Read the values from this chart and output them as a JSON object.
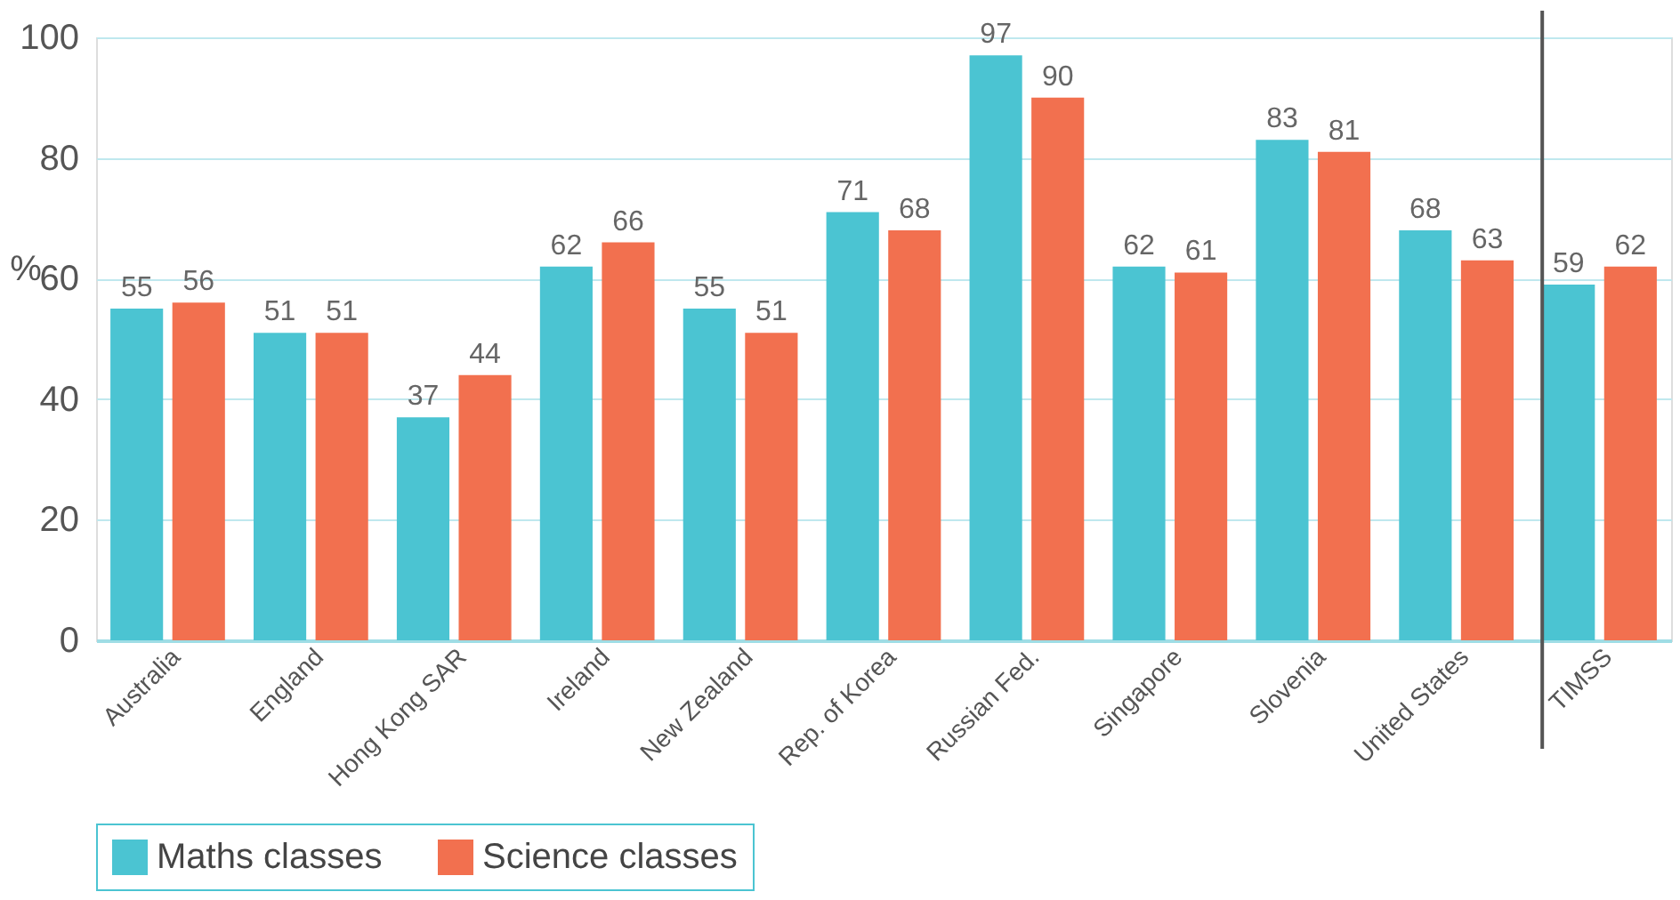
{
  "chart_data": {
    "type": "bar",
    "ylabel": "%",
    "categories": [
      "Australia",
      "England",
      "Hong Kong SAR",
      "Ireland",
      "New Zealand",
      "Rep. of Korea",
      "Russian Fed.",
      "Singapore",
      "Slovenia",
      "United States",
      "TIMSS"
    ],
    "series": [
      {
        "name": "Maths classes",
        "color": "#4bc4d2",
        "values": [
          55,
          51,
          37,
          62,
          55,
          71,
          97,
          62,
          83,
          68,
          59
        ]
      },
      {
        "name": "Science classes",
        "color": "#f2704f",
        "values": [
          56,
          51,
          44,
          66,
          51,
          68,
          90,
          61,
          81,
          63,
          62
        ]
      }
    ],
    "ylim": [
      0,
      100
    ],
    "yticks": [
      0,
      20,
      40,
      60,
      80,
      100
    ],
    "grid": "y",
    "legend": "bottom",
    "data_labels": true,
    "ref_lines": [
      {
        "axis": "x",
        "value": "TIMSS",
        "color": "#555555"
      }
    ]
  }
}
